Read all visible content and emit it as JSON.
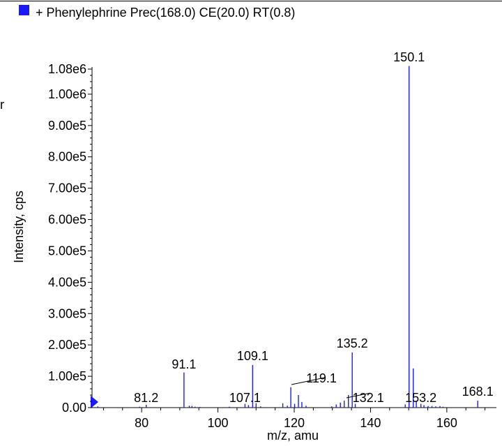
{
  "header": {
    "title": "+ Phenylephrine Prec(168.0) CE(20.0) RT(0.8)",
    "stray_text": "r"
  },
  "colors": {
    "series": "#1a1aff",
    "axis": "#000000"
  },
  "chart_data": {
    "type": "bar",
    "title": "+ Phenylephrine Prec(168.0) CE(20.0) RT(0.8)",
    "xlabel": "m/z, amu",
    "ylabel": "Intensity, cps",
    "xlim": [
      67,
      173
    ],
    "ylim": [
      0,
      1100000
    ],
    "xticks": [
      80,
      100,
      120,
      140,
      160
    ],
    "yticks": [
      0,
      100000,
      200000,
      300000,
      400000,
      500000,
      600000,
      700000,
      800000,
      900000,
      1000000,
      1080000
    ],
    "ytick_labels": [
      "0.00",
      "1.00e5",
      "2.00e5",
      "3.00e5",
      "4.00e5",
      "5.00e5",
      "6.00e5",
      "7.00e5",
      "8.00e5",
      "9.00e5",
      "1.00e6",
      "1.08e6"
    ],
    "grid": false,
    "legend": "top-left",
    "peaks": [
      {
        "mz": 68.5,
        "i": 4000
      },
      {
        "mz": 79.5,
        "i": 3000
      },
      {
        "mz": 81.2,
        "i": 9000,
        "label": "81.2"
      },
      {
        "mz": 91.1,
        "i": 112000,
        "label": "91.1"
      },
      {
        "mz": 92.5,
        "i": 6000
      },
      {
        "mz": 93.2,
        "i": 5000
      },
      {
        "mz": 94.0,
        "i": 3000
      },
      {
        "mz": 95.3,
        "i": 2000
      },
      {
        "mz": 103.0,
        "i": 3000
      },
      {
        "mz": 107.1,
        "i": 12000,
        "label": "107.1"
      },
      {
        "mz": 108.0,
        "i": 8000
      },
      {
        "mz": 109.1,
        "i": 136000,
        "label": "109.1"
      },
      {
        "mz": 110.0,
        "i": 14000
      },
      {
        "mz": 111.2,
        "i": 4000
      },
      {
        "mz": 117.0,
        "i": 14000
      },
      {
        "mz": 118.2,
        "i": 6000
      },
      {
        "mz": 119.1,
        "i": 65000,
        "label": "119.1"
      },
      {
        "mz": 120.1,
        "i": 12000
      },
      {
        "mz": 121.1,
        "i": 40000
      },
      {
        "mz": 122.0,
        "i": 18000
      },
      {
        "mz": 123.1,
        "i": 6000
      },
      {
        "mz": 129.8,
        "i": 4000
      },
      {
        "mz": 131.0,
        "i": 10000
      },
      {
        "mz": 132.1,
        "i": 16000,
        "label": "132.1"
      },
      {
        "mz": 133.1,
        "i": 22000
      },
      {
        "mz": 134.2,
        "i": 40000
      },
      {
        "mz": 135.2,
        "i": 176000,
        "label": "135.2"
      },
      {
        "mz": 136.0,
        "i": 12000
      },
      {
        "mz": 149.1,
        "i": 10000
      },
      {
        "mz": 150.1,
        "i": 1090000,
        "label": "150.1"
      },
      {
        "mz": 151.2,
        "i": 125000
      },
      {
        "mz": 152.0,
        "i": 22000
      },
      {
        "mz": 153.2,
        "i": 12000,
        "label": "153.2"
      },
      {
        "mz": 154.0,
        "i": 8000
      },
      {
        "mz": 155.1,
        "i": 5000
      },
      {
        "mz": 156.1,
        "i": 5000
      },
      {
        "mz": 157.1,
        "i": 4000
      },
      {
        "mz": 158.2,
        "i": 5000
      },
      {
        "mz": 159.0,
        "i": 3000
      },
      {
        "mz": 168.1,
        "i": 22000,
        "label": "168.1"
      }
    ]
  }
}
